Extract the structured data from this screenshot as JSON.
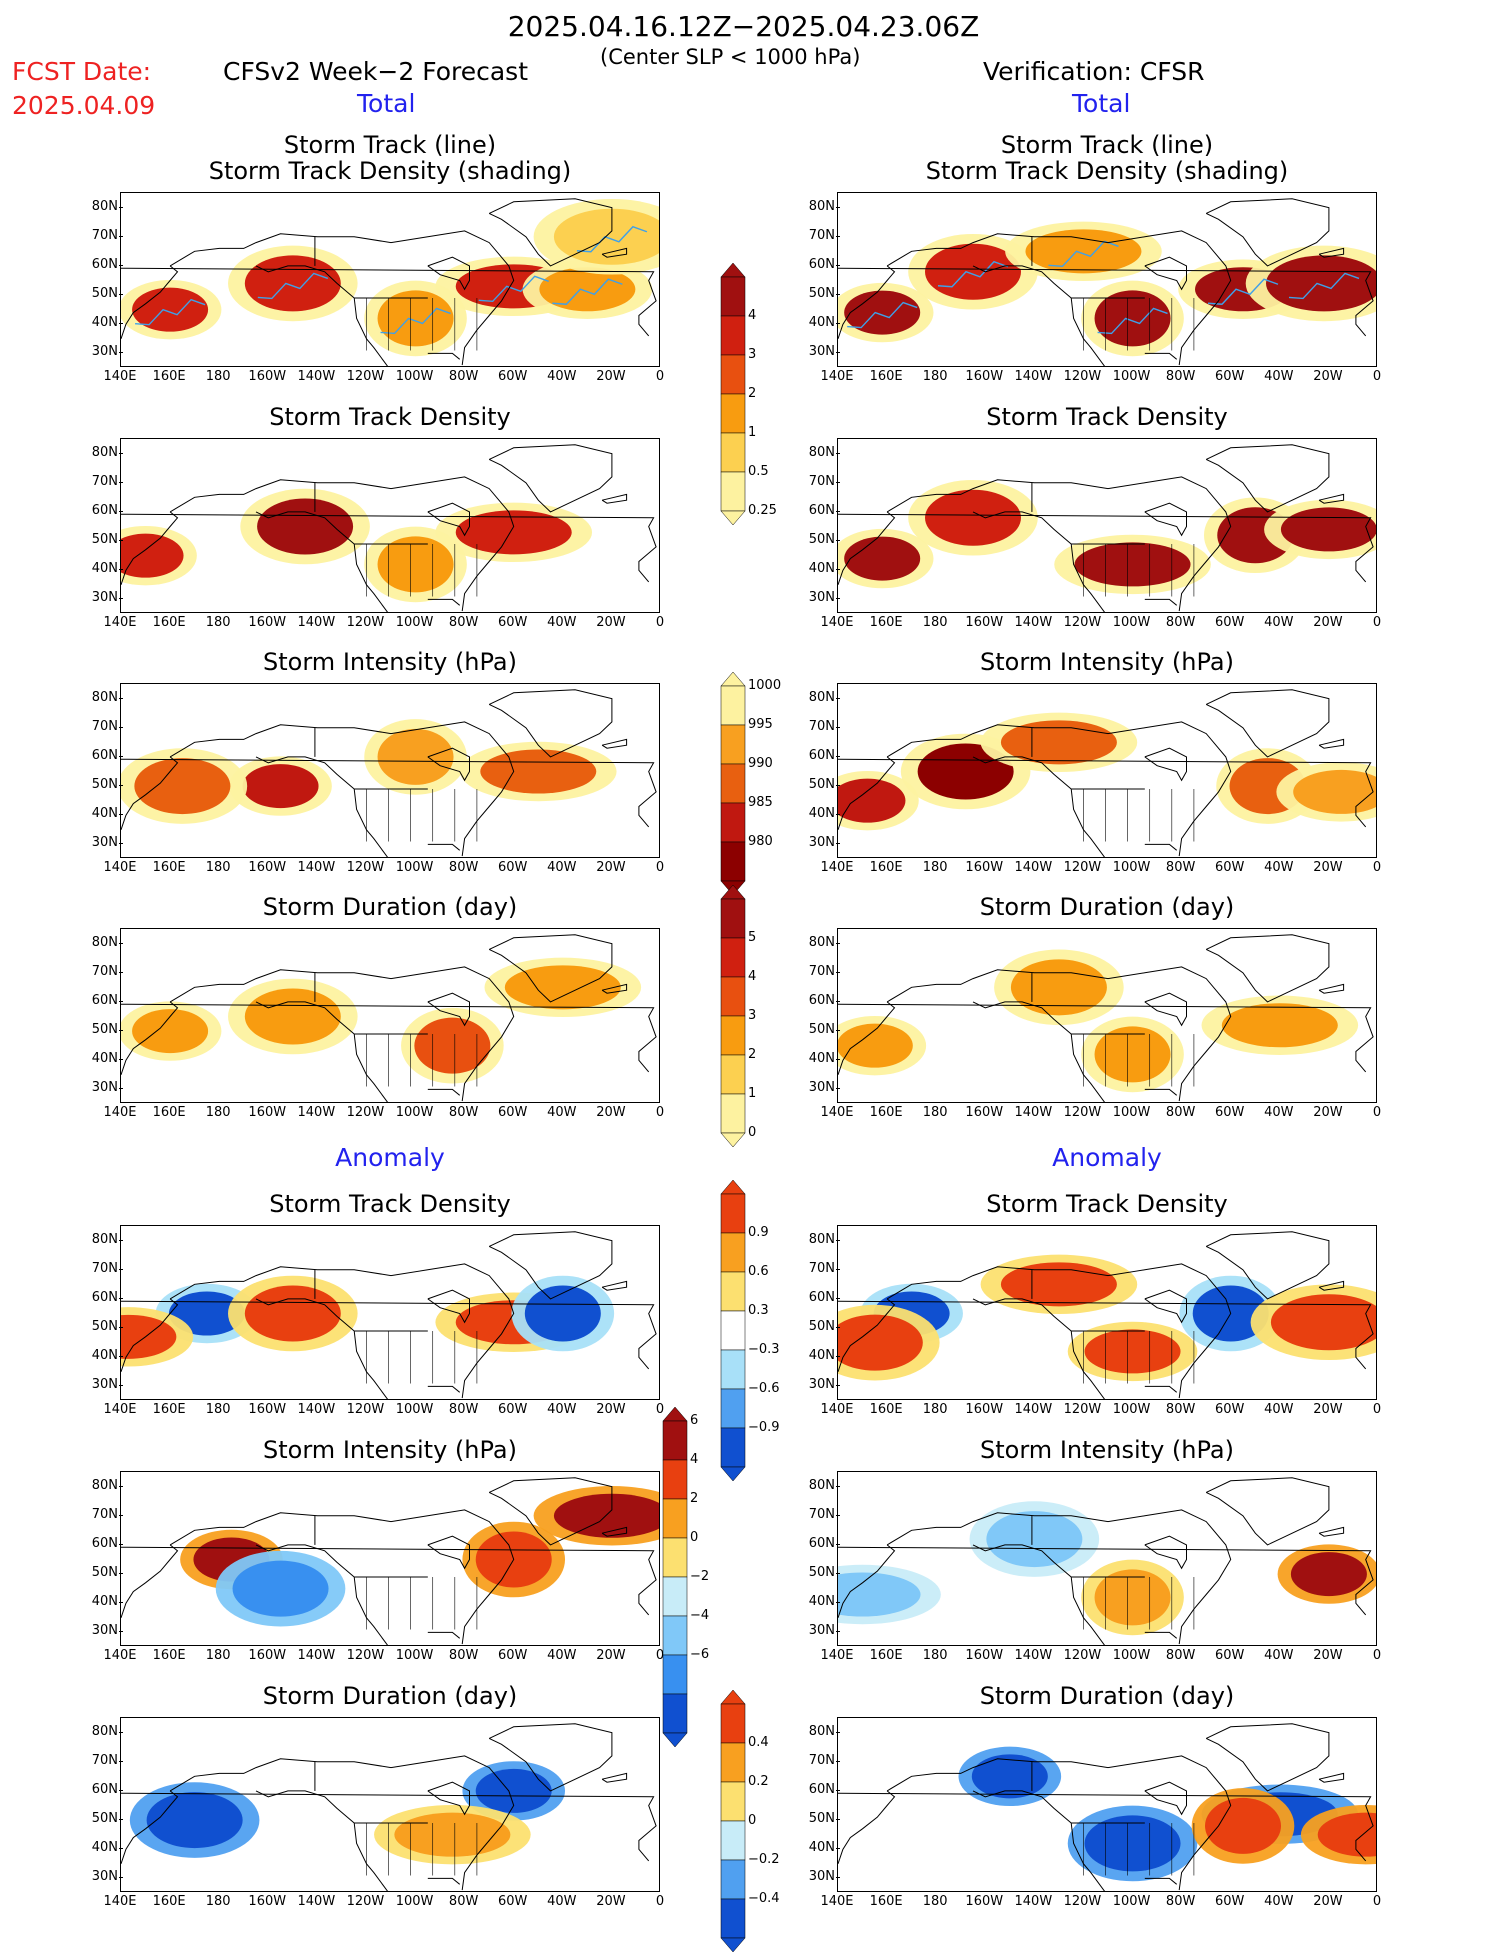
{
  "header": {
    "dates": "2025.04.16.12Z−2025.04.23.06Z",
    "criterion": "(Center SLP < 1000 hPa)",
    "fcst_label": "FCST Date:",
    "fcst_date": "2025.04.09",
    "left_title": "CFSv2 Week−2 Forecast",
    "right_title": "Verification: CFSR",
    "total_left": "Total",
    "total_right": "Total",
    "anomaly_left": "Anomaly",
    "anomaly_right": "Anomaly"
  },
  "rows": [
    {
      "title": "Storm Track (line)",
      "title2": "Storm Track Density (shading)"
    },
    {
      "title": "Storm Track Density",
      "title2": ""
    },
    {
      "title": "Storm Intensity (hPa)",
      "title2": ""
    },
    {
      "title": "Storm Duration (day)",
      "title2": ""
    },
    {
      "title": "Storm Track Density",
      "title2": ""
    },
    {
      "title": "Storm Intensity (hPa)",
      "title2": ""
    },
    {
      "title": "Storm Duration (day)",
      "title2": ""
    }
  ],
  "axes": {
    "y_ticks": [
      "80N",
      "70N",
      "60N",
      "50N",
      "40N",
      "30N"
    ],
    "x_ticks": [
      "140E",
      "160E",
      "180",
      "160W",
      "140W",
      "120W",
      "100W",
      "80W",
      "60W",
      "40W",
      "20W",
      "0"
    ]
  },
  "colorbars": {
    "density": {
      "labels": [
        "4",
        "3",
        "2",
        "1",
        "0.5",
        "0.25"
      ],
      "colors": [
        "#a01010",
        "#d02010",
        "#e85010",
        "#f89c10",
        "#fcd050",
        "#fdf2a0"
      ]
    },
    "intensity": {
      "labels": [
        "1000",
        "995",
        "990",
        "985",
        "980"
      ],
      "colors": [
        "#fdf2a0",
        "#f8a020",
        "#e86010",
        "#c01810",
        "#8c0000"
      ]
    },
    "duration": {
      "labels": [
        "5",
        "4",
        "3",
        "2",
        "1",
        "0"
      ],
      "colors": [
        "#a01010",
        "#d02010",
        "#e85010",
        "#f89c10",
        "#fcd050",
        "#fdf2a0"
      ]
    },
    "anom_density": {
      "labels": [
        "0.9",
        "0.6",
        "0.3",
        "−0.3",
        "−0.6",
        "−0.9"
      ],
      "colors": [
        "#e84010",
        "#f8a020",
        "#fce070",
        "#ffffff",
        "#a8e0f8",
        "#50a0f0",
        "#1050d0"
      ]
    },
    "anom_intensity": {
      "labels": [
        "6",
        "4",
        "2",
        "0",
        "−2",
        "−4",
        "−6"
      ],
      "colors": [
        "#a01010",
        "#e84010",
        "#f8a020",
        "#fce070",
        "#c8ecf8",
        "#80c8f8",
        "#3890f0",
        "#1050d0"
      ]
    },
    "anom_duration": {
      "labels": [
        "0.4",
        "0.2",
        "0",
        "−0.2",
        "−0.4"
      ],
      "colors": [
        "#e84010",
        "#f8a020",
        "#fce070",
        "#c8ecf8",
        "#50a0f0",
        "#1050d0"
      ]
    }
  },
  "chart_data": [
    {
      "type": "heatmap",
      "title": "Storm Track (line) / Storm Track Density (shading)",
      "panel": "CFSv2 Week-2 Forecast, Total",
      "x_range": [
        "140E",
        "0"
      ],
      "y_range": [
        "25N",
        "85N"
      ],
      "blobs": [
        {
          "lon": 160,
          "lat": 45,
          "value": 3
        },
        {
          "lon": -150,
          "lat": 54,
          "value": 3
        },
        {
          "lon": -60,
          "lat": 53,
          "value": 3
        },
        {
          "lon": -100,
          "lat": 42,
          "value": 1
        },
        {
          "lon": -30,
          "lat": 52,
          "value": 1
        },
        {
          "lon": -20,
          "lat": 70,
          "value": 0.5
        }
      ]
    },
    {
      "type": "heatmap",
      "title": "Storm Track (line) / Storm Track Density (shading)",
      "panel": "Verification: CFSR, Total",
      "x_range": [
        "140E",
        "0"
      ],
      "y_range": [
        "25N",
        "85N"
      ],
      "blobs": [
        {
          "lon": 158,
          "lat": 44,
          "value": 4
        },
        {
          "lon": -165,
          "lat": 58,
          "value": 3
        },
        {
          "lon": -120,
          "lat": 65,
          "value": 1
        },
        {
          "lon": -100,
          "lat": 42,
          "value": 4
        },
        {
          "lon": -55,
          "lat": 52,
          "value": 4
        },
        {
          "lon": -22,
          "lat": 54,
          "value": 4
        }
      ]
    },
    {
      "type": "heatmap",
      "title": "Storm Track Density",
      "panel": "CFSv2 Week-2 Forecast, Total",
      "x_range": [
        "140E",
        "0"
      ],
      "y_range": [
        "25N",
        "85N"
      ],
      "blobs": [
        {
          "lon": 150,
          "lat": 45,
          "value": 3
        },
        {
          "lon": -145,
          "lat": 55,
          "value": 4
        },
        {
          "lon": -60,
          "lat": 53,
          "value": 3
        },
        {
          "lon": -100,
          "lat": 42,
          "value": 1
        }
      ]
    },
    {
      "type": "heatmap",
      "title": "Storm Track Density",
      "panel": "Verification: CFSR, Total",
      "x_range": [
        "140E",
        "0"
      ],
      "y_range": [
        "25N",
        "85N"
      ],
      "blobs": [
        {
          "lon": 158,
          "lat": 44,
          "value": 4
        },
        {
          "lon": -165,
          "lat": 58,
          "value": 3
        },
        {
          "lon": -100,
          "lat": 42,
          "value": 4
        },
        {
          "lon": -50,
          "lat": 52,
          "value": 4
        },
        {
          "lon": -20,
          "lat": 54,
          "value": 4
        }
      ]
    },
    {
      "type": "heatmap",
      "title": "Storm Intensity (hPa)",
      "panel": "CFSv2 Week-2 Forecast, Total",
      "x_range": [
        "140E",
        "0"
      ],
      "y_range": [
        "25N",
        "85N"
      ],
      "blobs": [
        {
          "lon": -155,
          "lat": 50,
          "value": 985
        },
        {
          "lon": 165,
          "lat": 50,
          "value": 990
        },
        {
          "lon": -50,
          "lat": 55,
          "value": 990
        },
        {
          "lon": -100,
          "lat": 60,
          "value": 995
        }
      ]
    },
    {
      "type": "heatmap",
      "title": "Storm Intensity (hPa)",
      "panel": "Verification: CFSR, Total",
      "x_range": [
        "140E",
        "0"
      ],
      "y_range": [
        "25N",
        "85N"
      ],
      "blobs": [
        {
          "lon": 152,
          "lat": 45,
          "value": 985
        },
        {
          "lon": -168,
          "lat": 55,
          "value": 980
        },
        {
          "lon": -130,
          "lat": 65,
          "value": 990
        },
        {
          "lon": -45,
          "lat": 50,
          "value": 990
        },
        {
          "lon": -15,
          "lat": 48,
          "value": 995
        }
      ]
    },
    {
      "type": "heatmap",
      "title": "Storm Duration (day)",
      "panel": "CFSv2 Week-2 Forecast, Total",
      "x_range": [
        "140E",
        "0"
      ],
      "y_range": [
        "25N",
        "85N"
      ],
      "blobs": [
        {
          "lon": 160,
          "lat": 50,
          "value": 2
        },
        {
          "lon": -150,
          "lat": 55,
          "value": 2
        },
        {
          "lon": -40,
          "lat": 65,
          "value": 2
        },
        {
          "lon": -85,
          "lat": 45,
          "value": 3
        }
      ]
    },
    {
      "type": "heatmap",
      "title": "Storm Duration (day)",
      "panel": "Verification: CFSR, Total",
      "x_range": [
        "140E",
        "0"
      ],
      "y_range": [
        "25N",
        "85N"
      ],
      "blobs": [
        {
          "lon": 155,
          "lat": 45,
          "value": 2
        },
        {
          "lon": -130,
          "lat": 65,
          "value": 2
        },
        {
          "lon": -40,
          "lat": 52,
          "value": 2
        },
        {
          "lon": -100,
          "lat": 42,
          "value": 2
        }
      ]
    },
    {
      "type": "heatmap",
      "title": "Storm Track Density",
      "panel": "CFSv2 Week-2 Forecast, Anomaly",
      "x_range": [
        "140E",
        "0"
      ],
      "y_range": [
        "25N",
        "85N"
      ],
      "blobs": [
        {
          "lon": 175,
          "lat": 55,
          "value": -0.9
        },
        {
          "lon": -150,
          "lat": 55,
          "value": 0.9
        },
        {
          "lon": -60,
          "lat": 52,
          "value": 0.9
        },
        {
          "lon": -40,
          "lat": 55,
          "value": -0.9
        },
        {
          "lon": 143,
          "lat": 47,
          "value": 0.9
        }
      ]
    },
    {
      "type": "heatmap",
      "title": "Storm Track Density",
      "panel": "Verification: CFSR, Anomaly",
      "x_range": [
        "140E",
        "0"
      ],
      "y_range": [
        "25N",
        "85N"
      ],
      "blobs": [
        {
          "lon": 170,
          "lat": 55,
          "value": -0.9
        },
        {
          "lon": 155,
          "lat": 45,
          "value": 0.9
        },
        {
          "lon": -130,
          "lat": 65,
          "value": 0.9
        },
        {
          "lon": -60,
          "lat": 55,
          "value": -0.9
        },
        {
          "lon": -100,
          "lat": 42,
          "value": 0.9
        },
        {
          "lon": -20,
          "lat": 52,
          "value": 0.9
        }
      ]
    },
    {
      "type": "heatmap",
      "title": "Storm Intensity (hPa)",
      "panel": "CFSv2 Week-2 Forecast, Anomaly",
      "x_range": [
        "140E",
        "0"
      ],
      "y_range": [
        "25N",
        "85N"
      ],
      "blobs": [
        {
          "lon": -175,
          "lat": 55,
          "value": 6
        },
        {
          "lon": -155,
          "lat": 45,
          "value": -4
        },
        {
          "lon": -20,
          "lat": 70,
          "value": 6
        },
        {
          "lon": -60,
          "lat": 55,
          "value": 4
        }
      ]
    },
    {
      "type": "heatmap",
      "title": "Storm Intensity (hPa)",
      "panel": "Verification: CFSR, Anomaly",
      "x_range": [
        "140E",
        "0"
      ],
      "y_range": [
        "25N",
        "85N"
      ],
      "blobs": [
        {
          "lon": -20,
          "lat": 50,
          "value": 6
        },
        {
          "lon": -140,
          "lat": 62,
          "value": -2
        },
        {
          "lon": 150,
          "lat": 43,
          "value": -2
        },
        {
          "lon": -100,
          "lat": 42,
          "value": 2
        }
      ]
    },
    {
      "type": "heatmap",
      "title": "Storm Duration (day)",
      "panel": "CFSv2 Week-2 Forecast, Anomaly",
      "x_range": [
        "140E",
        "0"
      ],
      "y_range": [
        "25N",
        "85N"
      ],
      "blobs": [
        {
          "lon": -60,
          "lat": 60,
          "value": -0.4
        },
        {
          "lon": 170,
          "lat": 50,
          "value": -0.4
        },
        {
          "lon": -85,
          "lat": 45,
          "value": 0.2
        }
      ]
    },
    {
      "type": "heatmap",
      "title": "Storm Duration (day)",
      "panel": "Verification: CFSR, Anomaly",
      "x_range": [
        "140E",
        "0"
      ],
      "y_range": [
        "25N",
        "85N"
      ],
      "blobs": [
        {
          "lon": -150,
          "lat": 65,
          "value": -0.4
        },
        {
          "lon": -100,
          "lat": 42,
          "value": -0.4
        },
        {
          "lon": -40,
          "lat": 52,
          "value": -0.4
        },
        {
          "lon": -55,
          "lat": 48,
          "value": 0.4
        },
        {
          "lon": -5,
          "lat": 45,
          "value": 0.4
        }
      ]
    }
  ]
}
